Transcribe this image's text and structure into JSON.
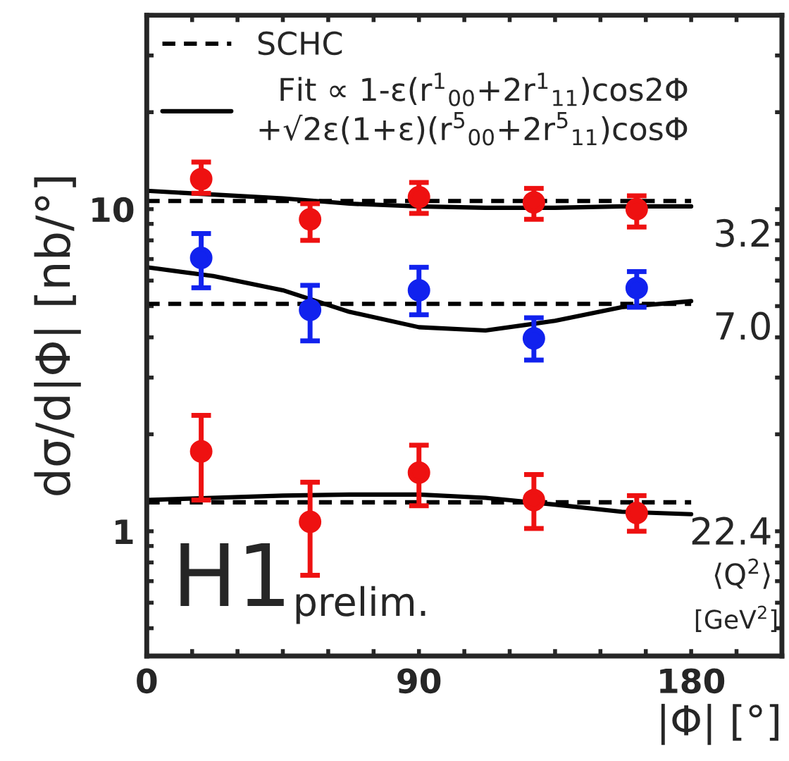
{
  "chart_data": {
    "type": "scatter",
    "xlabel": "|Φ| [°]",
    "ylabel": "dσ/d|Φ| [nb/°]",
    "xlim": [
      0,
      210
    ],
    "ylim": [
      0.41,
      40
    ],
    "log": "y",
    "xticks": [
      0,
      {
        "value": 15,
        "label": null
      },
      {
        "value": 30,
        "label": null
      },
      {
        "value": 45,
        "label": null
      },
      {
        "value": 60,
        "label": null
      },
      {
        "value": 75,
        "label": null
      },
      90,
      {
        "value": 105,
        "label": null
      },
      {
        "value": 120,
        "label": null
      },
      {
        "value": 135,
        "label": null
      },
      {
        "value": 150,
        "label": null
      },
      {
        "value": 165,
        "label": null
      },
      180,
      {
        "value": 195,
        "label": null
      }
    ],
    "yticks": [
      {
        "value": 0.5,
        "label": null
      },
      {
        "value": 0.6,
        "label": null
      },
      {
        "value": 0.7,
        "label": null
      },
      {
        "value": 0.8,
        "label": null
      },
      {
        "value": 0.9,
        "label": null
      },
      1,
      {
        "value": 2,
        "label": null
      },
      {
        "value": 3,
        "label": null
      },
      {
        "value": 4,
        "label": null
      },
      {
        "value": 5,
        "label": null
      },
      {
        "value": 6,
        "label": null
      },
      {
        "value": 7,
        "label": null
      },
      {
        "value": 8,
        "label": null
      },
      {
        "value": 9,
        "label": null
      },
      10,
      {
        "value": 20,
        "label": null
      },
      {
        "value": 30,
        "label": null
      },
      {
        "value": 40,
        "label": null
      }
    ],
    "grid": false,
    "legend": "top left",
    "series": [
      {
        "type": "line",
        "name": "SCHC",
        "color": "#000000",
        "line_style": "dashed",
        "marker": "none",
        "x": [
          0,
          180
        ],
        "values": [
          10.6,
          10.6
        ]
      },
      {
        "type": "line",
        "name": "Fit ∝ 1-ε(r$^{1}$$_{00}$+2r$^{1}$$_{11}$)cos2Φ\n+√2ε(1+ε)(r$^{5}$$_{00}$+2r$^{5}$$_{11}$)cosΦ",
        "color": "#000000",
        "line_style": "solid",
        "marker": "none",
        "x": [
          0,
          22,
          45,
          67,
          90,
          112,
          135,
          157,
          180
        ],
        "values": [
          11.4,
          11.1,
          10.8,
          10.4,
          10.2,
          10.1,
          10.1,
          10.2,
          10.2
        ]
      },
      {
        "type": "line",
        "color": "#000000",
        "line_style": "dashed",
        "marker": "none",
        "x": [
          0,
          180
        ],
        "values": [
          5.08,
          5.08
        ]
      },
      {
        "type": "line",
        "color": "#000000",
        "line_style": "solid",
        "marker": "none",
        "x": [
          0,
          22,
          45,
          67,
          90,
          112,
          135,
          157,
          180
        ],
        "values": [
          6.6,
          6.2,
          5.6,
          4.8,
          4.3,
          4.2,
          4.5,
          4.96,
          5.18
        ]
      },
      {
        "type": "line",
        "color": "#000000",
        "line_style": "dashed",
        "marker": "none",
        "x": [
          0,
          180
        ],
        "values": [
          1.23,
          1.23
        ]
      },
      {
        "type": "line",
        "color": "#000000",
        "line_style": "solid",
        "marker": "none",
        "x": [
          0,
          22,
          45,
          67,
          90,
          112,
          135,
          157,
          180
        ],
        "values": [
          1.25,
          1.27,
          1.29,
          1.3,
          1.3,
          1.27,
          1.21,
          1.15,
          1.13
        ]
      },
      {
        "color": "#ee1111",
        "marker": "circle",
        "x": [
          18,
          54,
          90,
          128,
          162
        ],
        "values": [
          12.4,
          9.3,
          10.9,
          10.5,
          10.0
        ],
        "errors": [
          [
            11.2,
            14.0
          ],
          [
            8.0,
            10.4
          ],
          [
            9.7,
            12.1
          ],
          [
            9.3,
            11.6
          ],
          [
            8.8,
            11.0
          ]
        ]
      },
      {
        "color": "#1122ee",
        "marker": "circle",
        "x": [
          18,
          54,
          90,
          128,
          162
        ],
        "values": [
          7.06,
          4.87,
          5.6,
          3.97,
          5.69
        ],
        "errors": [
          [
            5.7,
            8.4
          ],
          [
            3.9,
            5.8
          ],
          [
            4.7,
            6.6
          ],
          [
            3.4,
            4.6
          ],
          [
            4.96,
            6.4
          ]
        ]
      },
      {
        "color": "#ee1111",
        "marker": "circle",
        "x": [
          18,
          54,
          90,
          128,
          162
        ],
        "values": [
          1.77,
          1.07,
          1.52,
          1.25,
          1.14
        ],
        "errors": [
          [
            1.25,
            2.29
          ],
          [
            0.73,
            1.42
          ],
          [
            1.2,
            1.85
          ],
          [
            1.02,
            1.5
          ],
          [
            1.0,
            1.29
          ]
        ]
      }
    ],
    "annotations": [
      "3.2",
      "7.0",
      "22.4",
      "⟨Q$^{2}$⟩",
      "[GeV$^{2}$]",
      "H1",
      "prelim."
    ]
  }
}
